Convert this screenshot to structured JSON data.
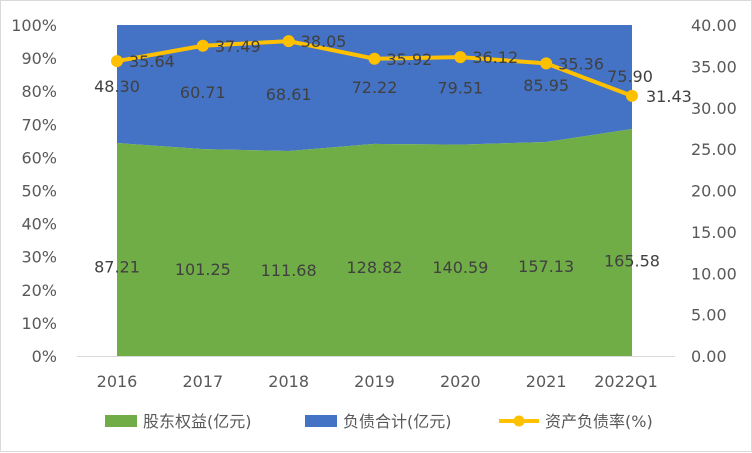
{
  "chart_data": {
    "type": "area",
    "categories": [
      "2016",
      "2017",
      "2018",
      "2019",
      "2020",
      "2021",
      "2022Q1"
    ],
    "series": [
      {
        "name": "股东权益(亿元)",
        "kind": "stacked-area-percent",
        "axis": "left",
        "color": "#70AD47",
        "values": [
          87.21,
          101.25,
          111.68,
          128.82,
          140.59,
          157.13,
          165.58
        ],
        "labels": [
          "87.21",
          "101.25",
          "111.68",
          "128.82",
          "140.59",
          "157.13",
          "165.58"
        ]
      },
      {
        "name": "负债合计(亿元)",
        "kind": "stacked-area-percent",
        "axis": "left",
        "color": "#4472C4",
        "values": [
          48.3,
          60.71,
          68.61,
          72.22,
          79.51,
          85.95,
          75.9
        ],
        "labels": [
          "48.30",
          "60.71",
          "68.61",
          "72.22",
          "79.51",
          "85.95",
          "75.90"
        ]
      },
      {
        "name": "资产负债率(%)",
        "kind": "line",
        "axis": "right",
        "color": "#FFC000",
        "values": [
          35.64,
          37.49,
          38.05,
          35.92,
          36.12,
          35.36,
          31.43
        ],
        "labels": [
          "35.64",
          "37.49",
          "38.05",
          "35.92",
          "36.12",
          "35.36",
          "31.43"
        ]
      }
    ],
    "left_axis": {
      "min": 0,
      "max": 100,
      "step": 10,
      "tick_labels": [
        "0%",
        "10%",
        "20%",
        "30%",
        "40%",
        "50%",
        "60%",
        "70%",
        "80%",
        "90%",
        "100%"
      ]
    },
    "right_axis": {
      "min": 0,
      "max": 40,
      "step": 5,
      "tick_labels": [
        "0.00",
        "5.00",
        "10.00",
        "15.00",
        "20.00",
        "25.00",
        "30.00",
        "35.00",
        "40.00"
      ]
    },
    "legend_position": "bottom",
    "grid": false
  }
}
